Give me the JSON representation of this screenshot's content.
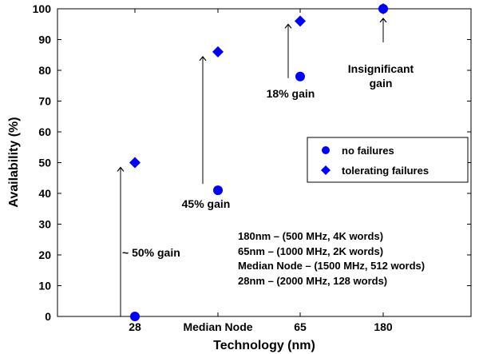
{
  "chart_data": {
    "type": "scatter",
    "xlabel": "Technology (nm)",
    "ylabel": "Availability (%)",
    "categories": [
      "28",
      "Median Node",
      "65",
      "180"
    ],
    "ylim": [
      0,
      100
    ],
    "yticks": [
      0,
      10,
      20,
      30,
      40,
      50,
      60,
      70,
      80,
      90,
      100
    ],
    "series": [
      {
        "name": "no failures",
        "marker": "circle",
        "color": "#0000ff",
        "values": [
          0,
          41,
          78,
          100
        ]
      },
      {
        "name": "tolerating failures",
        "marker": "diamond",
        "color": "#0000ff",
        "values": [
          50,
          86,
          96,
          100
        ]
      }
    ],
    "legend_position": "right",
    "annotations": [
      {
        "category": "28",
        "text": "~ 50% gain"
      },
      {
        "category": "Median Node",
        "text": "45% gain"
      },
      {
        "category": "65",
        "text": "18% gain"
      },
      {
        "category": "180",
        "lines": [
          "Insignificant",
          "gain"
        ]
      }
    ],
    "specs": [
      "180nm – (500 MHz, 4K words)",
      "65nm – (1000 MHz, 2K words)",
      "Median Node – (1500 MHz, 512 words)",
      "28nm – (2000 MHz, 128 words)"
    ],
    "grid": false
  }
}
